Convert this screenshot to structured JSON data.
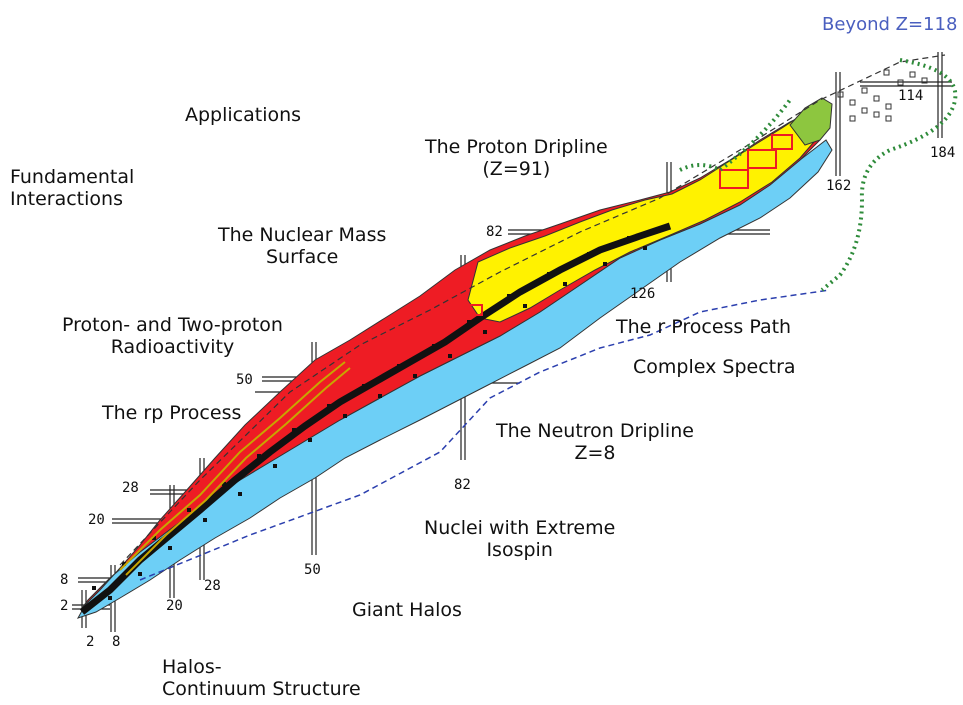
{
  "labels": {
    "applications": "Applications",
    "fundamental": [
      "Fundamental",
      "Interactions"
    ],
    "proton_dripline": [
      "The Proton Dripline",
      "(Z=91)"
    ],
    "mass_surface": [
      "The Nuclear Mass",
      "Surface"
    ],
    "proton_radio": [
      "Proton- and Two-proton",
      "Radioactivity"
    ],
    "rp_process": "The rp Process",
    "r_process": "The r Process Path",
    "complex_spectra": "Complex Spectra",
    "neutron_dripline": [
      "The Neutron Dripline",
      "Z=8"
    ],
    "extreme_isospin": [
      "Nuclei with Extreme",
      "Isospin"
    ],
    "giant_halos": "Giant Halos",
    "halos_continuum": [
      "Halos-",
      "Continuum Structure"
    ],
    "beyond": "Beyond Z=118"
  },
  "magic_numbers": {
    "z": [
      "2",
      "8",
      "20",
      "28",
      "50",
      "82",
      "114"
    ],
    "n": [
      "2",
      "8",
      "20",
      "28",
      "50",
      "82",
      "126",
      "162",
      "184"
    ]
  },
  "colors": {
    "stable": "#111111",
    "proton_rich": "#ee1c24",
    "heavy": "#fff200",
    "neutron_rich": "#6dcff6",
    "superheavy": "#8dc63f",
    "boundary": "#2b3fae",
    "beyond_line": "#2e8b3a",
    "predicted": "#333333"
  }
}
